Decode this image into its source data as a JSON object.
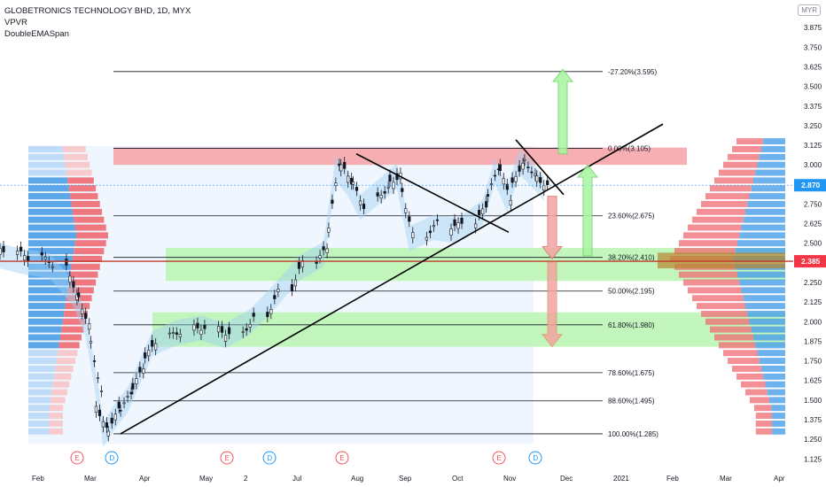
{
  "header": {
    "title": "GLOBETRONICS TECHNOLOGY BHD, 1D, MYX",
    "indicators": [
      "VPVR",
      "DoubleEMASpan"
    ],
    "currency": "MYR"
  },
  "chart_data": {
    "type": "candlestick",
    "y_axis": {
      "range": [
        1.07,
        3.98
      ],
      "ticks": [
        "3.875",
        "3.750",
        "3.625",
        "3.500",
        "3.375",
        "3.250",
        "3.125",
        "3.000",
        "2.750",
        "2.625",
        "2.500",
        "2.250",
        "2.125",
        "2.000",
        "1.875",
        "1.750",
        "1.625",
        "1.500",
        "1.375",
        "1.250",
        "1.125"
      ]
    },
    "x_axis": {
      "labels": [
        "Feb",
        "Mar",
        "Apr",
        "May",
        "2",
        "Jul",
        "Aug",
        "Sep",
        "Oct",
        "Nov",
        "Dec",
        "2021",
        "Feb",
        "Mar",
        "Apr"
      ]
    },
    "price_labels": [
      {
        "value": 2.87,
        "text": "2.870",
        "color": "#2196f3"
      },
      {
        "value": 2.385,
        "text": "2.385",
        "color": "#f23645"
      }
    ],
    "fibonacci": [
      {
        "level": "-27.20%",
        "price": 3.595,
        "label": "-27.20%(3.595)"
      },
      {
        "level": "0.00%",
        "price": 3.105,
        "label": "0.00%(3.105)"
      },
      {
        "level": "23.60%",
        "price": 2.675,
        "label": "23.60%(2.675)"
      },
      {
        "level": "38.20%",
        "price": 2.41,
        "label": "38.20%(2.410)"
      },
      {
        "level": "50.00%",
        "price": 2.195,
        "label": "50.00%(2.195)"
      },
      {
        "level": "61.80%",
        "price": 1.98,
        "label": "61.80%(1.980)"
      },
      {
        "level": "78.60%",
        "price": 1.675,
        "label": "78.60%(1.675)"
      },
      {
        "level": "88.60%",
        "price": 1.495,
        "label": "88.60%(1.495)"
      },
      {
        "level": "100.00%",
        "price": 1.285,
        "label": "100.00%(1.285)"
      }
    ],
    "zones": [
      {
        "kind": "resistance",
        "from": 3.0,
        "to": 3.11,
        "color": "#f7a1a6"
      },
      {
        "kind": "support",
        "from": 2.26,
        "to": 2.47,
        "color": "#b9f5b0"
      },
      {
        "kind": "support",
        "from": 1.84,
        "to": 2.06,
        "color": "#b9f5b0"
      }
    ],
    "close_series": [
      {
        "date": "2020-01-20",
        "close": 2.44
      },
      {
        "date": "2020-02-03",
        "close": 2.4
      },
      {
        "date": "2020-02-17",
        "close": 2.38
      },
      {
        "date": "2020-03-02",
        "close": 2.2
      },
      {
        "date": "2020-03-09",
        "close": 2.0
      },
      {
        "date": "2020-03-16",
        "close": 1.55
      },
      {
        "date": "2020-03-19",
        "close": 1.3
      },
      {
        "date": "2020-03-26",
        "close": 1.42
      },
      {
        "date": "2020-04-02",
        "close": 1.52
      },
      {
        "date": "2020-04-09",
        "close": 1.7
      },
      {
        "date": "2020-04-16",
        "close": 1.88
      },
      {
        "date": "2020-04-30",
        "close": 1.95
      },
      {
        "date": "2020-05-14",
        "close": 1.98
      },
      {
        "date": "2020-05-28",
        "close": 1.93
      },
      {
        "date": "2020-06-11",
        "close": 2.02
      },
      {
        "date": "2020-06-25",
        "close": 2.18
      },
      {
        "date": "2020-07-09",
        "close": 2.36
      },
      {
        "date": "2020-07-23",
        "close": 2.45
      },
      {
        "date": "2020-07-30",
        "close": 3.0
      },
      {
        "date": "2020-08-06",
        "close": 2.9
      },
      {
        "date": "2020-08-13",
        "close": 2.75
      },
      {
        "date": "2020-08-27",
        "close": 2.88
      },
      {
        "date": "2020-09-03",
        "close": 2.95
      },
      {
        "date": "2020-09-10",
        "close": 2.55
      },
      {
        "date": "2020-09-24",
        "close": 2.62
      },
      {
        "date": "2020-10-08",
        "close": 2.6
      },
      {
        "date": "2020-10-22",
        "close": 2.72
      },
      {
        "date": "2020-10-29",
        "close": 2.98
      },
      {
        "date": "2020-11-05",
        "close": 2.8
      },
      {
        "date": "2020-11-12",
        "close": 3.04
      },
      {
        "date": "2020-11-19",
        "close": 2.96
      },
      {
        "date": "2020-11-26",
        "close": 2.87
      }
    ],
    "earnings_markers": [
      {
        "type": "E",
        "date": "2020-02-18"
      },
      {
        "type": "D",
        "date": "2020-03-24"
      },
      {
        "type": "E",
        "date": "2020-05-28"
      },
      {
        "type": "D",
        "date": "2020-06-26"
      },
      {
        "type": "E",
        "date": "2020-07-28"
      },
      {
        "type": "E",
        "date": "2020-10-30"
      },
      {
        "type": "D",
        "date": "2020-11-23"
      }
    ],
    "grid": false,
    "legend_position": "top-left"
  }
}
